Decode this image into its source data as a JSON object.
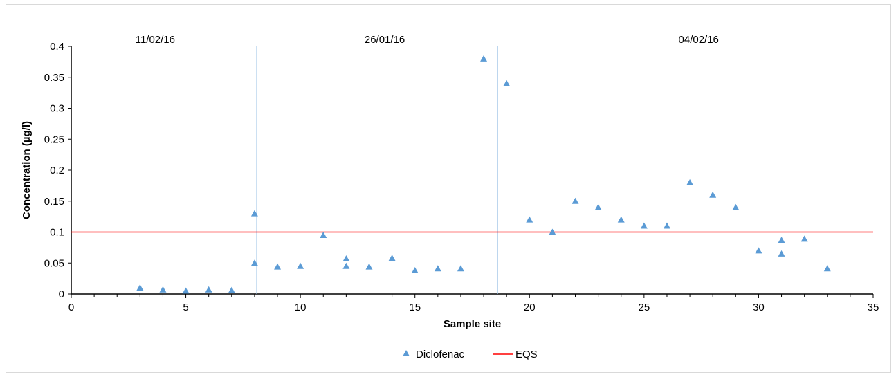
{
  "chart_data": {
    "type": "scatter",
    "xlabel": "Sample site",
    "ylabel": "Concentration (µg/l)",
    "xlim": [
      0,
      35
    ],
    "ylim": [
      0,
      0.4
    ],
    "xticks": [
      "0",
      "5",
      "10",
      "15",
      "20",
      "25",
      "30",
      "35"
    ],
    "yticks": [
      "0",
      "0.05",
      "0.1",
      "0.15",
      "0.2",
      "0.25",
      "0.3",
      "0.35",
      "0.4"
    ],
    "grid": false,
    "legend_position": "bottom",
    "series": [
      {
        "name": "Diclofenac",
        "marker": "triangle",
        "color": "#5b9bd5",
        "points": [
          [
            3,
            0.01
          ],
          [
            4,
            0.007
          ],
          [
            5,
            0.005
          ],
          [
            6,
            0.007
          ],
          [
            7,
            0.006
          ],
          [
            8,
            0.13
          ],
          [
            8,
            0.05
          ],
          [
            9,
            0.044
          ],
          [
            10,
            0.045
          ],
          [
            11,
            0.095
          ],
          [
            12,
            0.057
          ],
          [
            12,
            0.045
          ],
          [
            13,
            0.044
          ],
          [
            14,
            0.058
          ],
          [
            15,
            0.038
          ],
          [
            16,
            0.041
          ],
          [
            17,
            0.041
          ],
          [
            18,
            0.38
          ],
          [
            19,
            0.34
          ],
          [
            20,
            0.12
          ],
          [
            21,
            0.1
          ],
          [
            22,
            0.15
          ],
          [
            23,
            0.14
          ],
          [
            24,
            0.12
          ],
          [
            25,
            0.11
          ],
          [
            26,
            0.11
          ],
          [
            27,
            0.18
          ],
          [
            28,
            0.16
          ],
          [
            29,
            0.14
          ],
          [
            30,
            0.07
          ],
          [
            31,
            0.087
          ],
          [
            31,
            0.065
          ],
          [
            32,
            0.089
          ],
          [
            33,
            0.041
          ]
        ]
      },
      {
        "name": "EQS",
        "type": "hline",
        "color": "#ff0000",
        "value": 0.1
      }
    ],
    "dividers": [
      {
        "x": 8.1,
        "color": "#9dc3e6"
      },
      {
        "x": 18.6,
        "color": "#9dc3e6"
      }
    ],
    "period_labels": [
      {
        "text": "11/02/16",
        "x": 2.8
      },
      {
        "text": "26/01/16",
        "x": 12.8
      },
      {
        "text": "04/02/16",
        "x": 26.5
      }
    ]
  }
}
